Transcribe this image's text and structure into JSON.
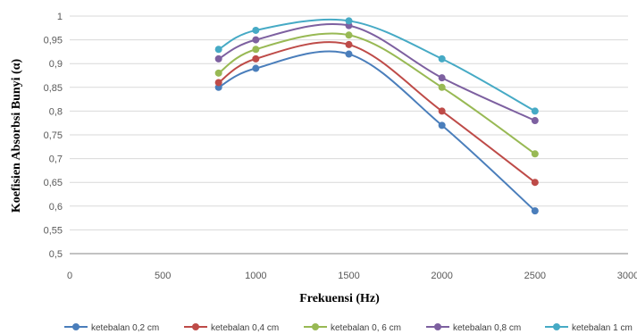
{
  "chart_data": {
    "type": "line",
    "xlabel": "Frekuensi (Hz)",
    "ylabel": "Koefisien Absorbsi Bunyi (α)",
    "xlim": [
      0,
      3000
    ],
    "ylim": [
      0.5,
      1
    ],
    "x_ticks": [
      "0",
      "500",
      "1000",
      "1500",
      "2000",
      "2500",
      "3000"
    ],
    "y_ticks": [
      "0,5",
      "0,55",
      "0,6",
      "0,65",
      "0,7",
      "0,75",
      "0,8",
      "0,85",
      "0,9",
      "0,95",
      "1"
    ],
    "grid": "horizontal",
    "legend_position": "bottom",
    "x": [
      800,
      1000,
      1500,
      2000,
      2500
    ],
    "series": [
      {
        "name": "ketebalan 0,2 cm",
        "color": "#4a7ebb",
        "values": [
          0.85,
          0.89,
          0.92,
          0.77,
          0.59
        ]
      },
      {
        "name": "ketebalan 0,4 cm",
        "color": "#be4b48",
        "values": [
          0.86,
          0.91,
          0.94,
          0.8,
          0.65
        ]
      },
      {
        "name": "ketebalan 0, 6 cm",
        "color": "#98b954",
        "values": [
          0.88,
          0.93,
          0.96,
          0.85,
          0.71
        ]
      },
      {
        "name": "ketebalan 0,8 cm",
        "color": "#7d60a0",
        "values": [
          0.91,
          0.95,
          0.98,
          0.87,
          0.78
        ]
      },
      {
        "name": "ketebalan 1 cm",
        "color": "#46aac5",
        "values": [
          0.93,
          0.97,
          0.99,
          0.91,
          0.8
        ]
      }
    ]
  }
}
